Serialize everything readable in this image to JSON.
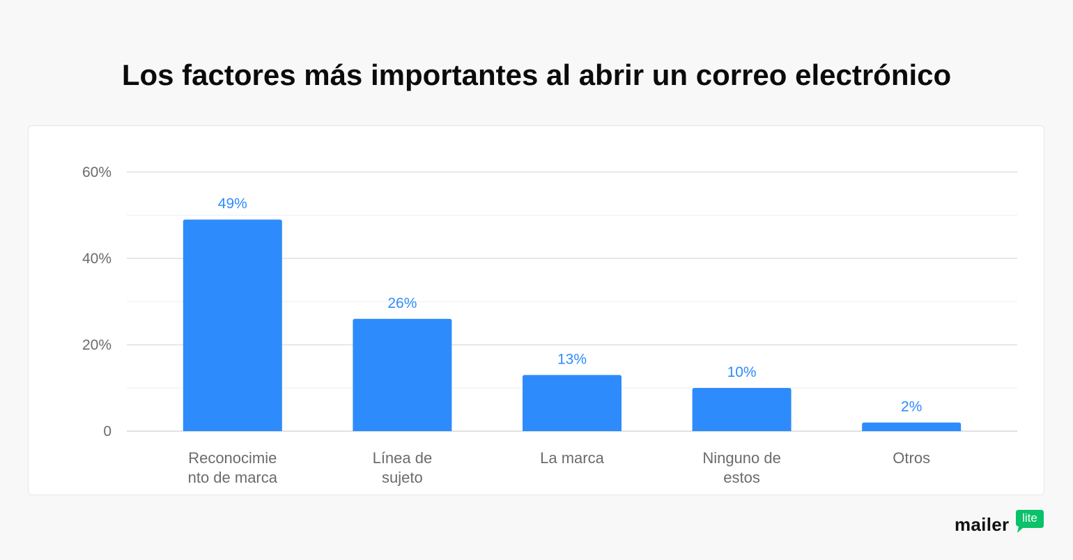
{
  "title": "Los factores más importantes al abrir un correo electrónico",
  "chart_data": {
    "type": "bar",
    "categories": [
      [
        "Reconocimie",
        "nto de marca"
      ],
      [
        "Línea de",
        "sujeto"
      ],
      [
        "La marca"
      ],
      [
        "Ninguno de",
        "estos"
      ],
      [
        "Otros"
      ]
    ],
    "values": [
      49,
      26,
      13,
      10,
      2
    ],
    "data_labels": [
      "49%",
      "26%",
      "13%",
      "10%",
      "2%"
    ],
    "y_ticks": [
      {
        "value": 0,
        "label": "0"
      },
      {
        "value": 20,
        "label": "20%"
      },
      {
        "value": 40,
        "label": "40%"
      },
      {
        "value": 60,
        "label": "60%"
      }
    ],
    "y_minor_gridlines": [
      10,
      30,
      50
    ],
    "ylim": [
      0,
      60
    ],
    "grid": true,
    "legend": "none",
    "bar_color": "#2e8bfc",
    "label_color": "#2e8bfc",
    "tick_color": "#6b6b6b"
  },
  "brand": {
    "word": "mailer",
    "badge": "lite",
    "badge_color": "#09c269"
  }
}
